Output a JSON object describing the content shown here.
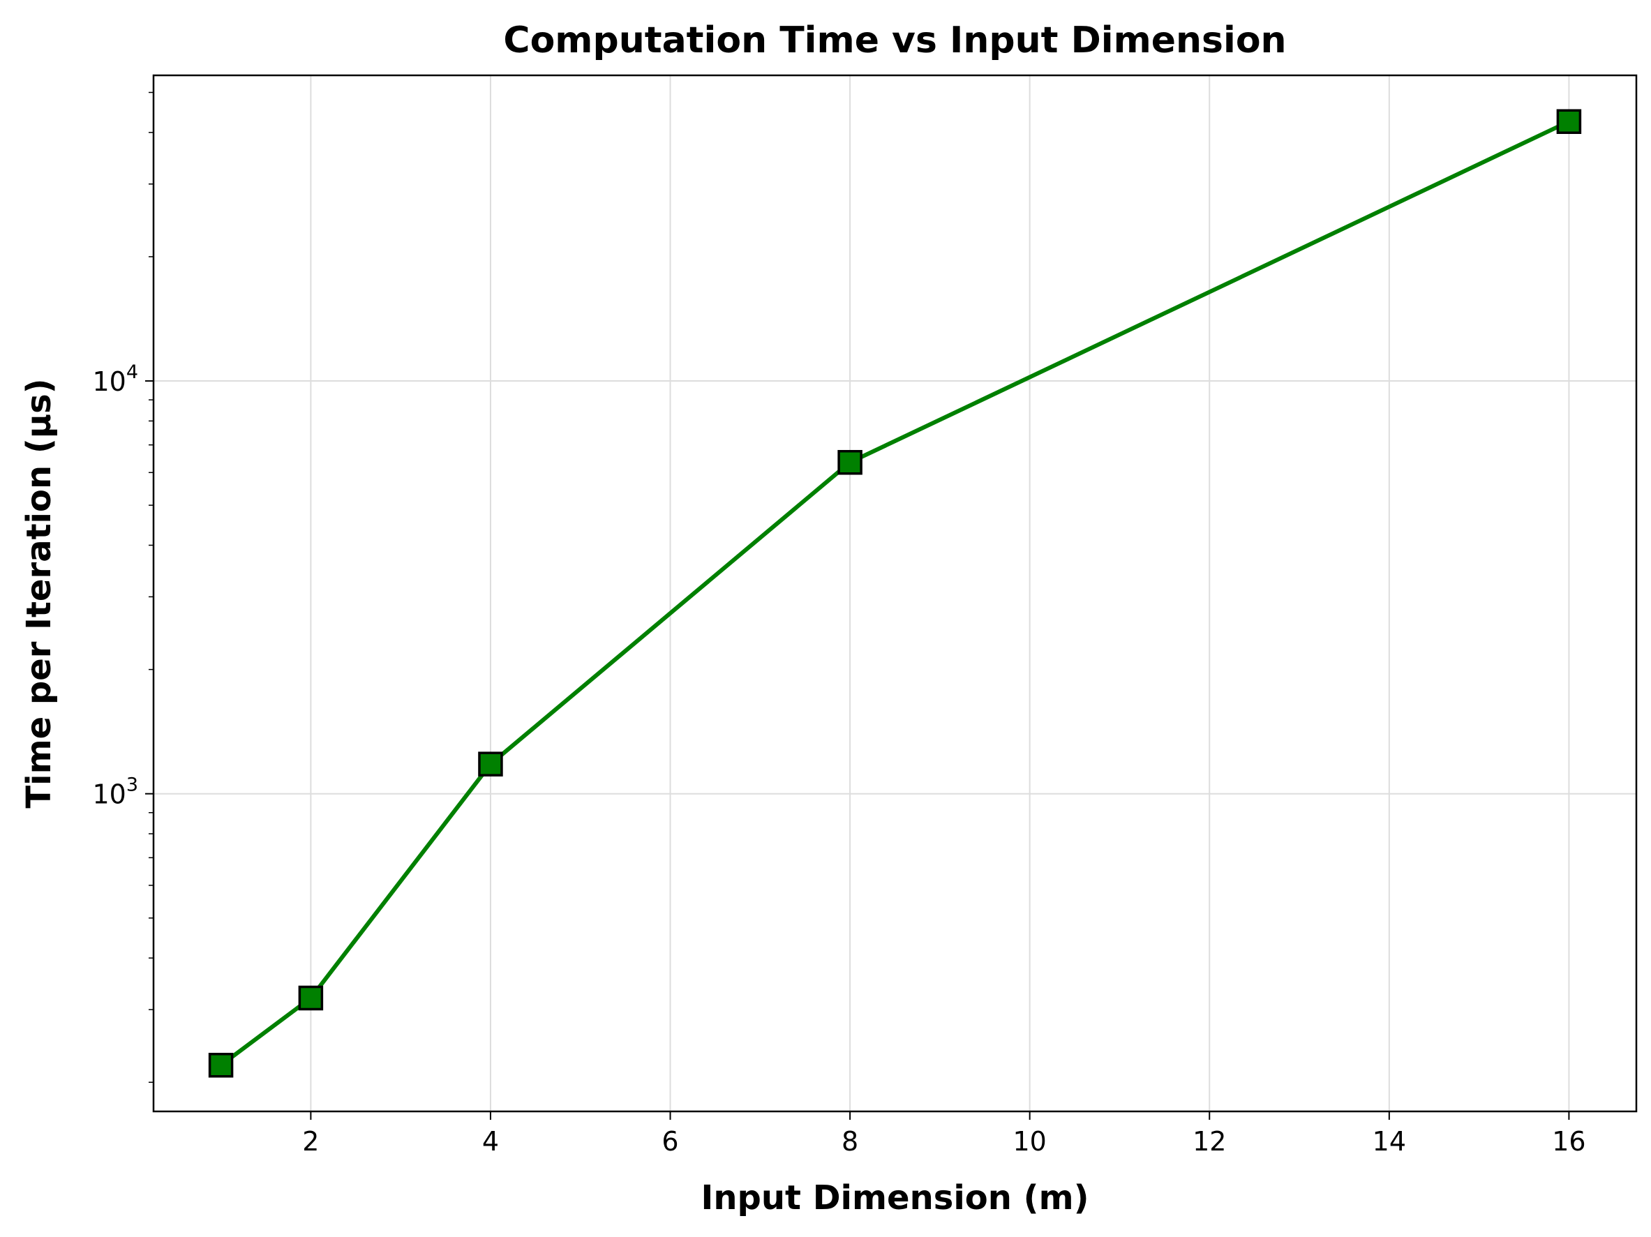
{
  "chart_data": {
    "type": "line",
    "title": "Computation Time vs Input Dimension",
    "xlabel": "Input Dimension (m)",
    "ylabel": "Time per Iteration (µs)",
    "x_scale": "linear",
    "y_scale": "log",
    "xlim": [
      0.25,
      16.75
    ],
    "ylim": [
      170,
      55000
    ],
    "x_ticks": [
      2,
      4,
      6,
      8,
      10,
      12,
      14,
      16
    ],
    "x_tick_labels": [
      "2",
      "4",
      "6",
      "8",
      "10",
      "12",
      "14",
      "16"
    ],
    "y_major_ticks": [
      {
        "value": 1000,
        "base": "10",
        "exp": "3"
      },
      {
        "value": 10000,
        "base": "10",
        "exp": "4"
      }
    ],
    "grid": true,
    "series": [
      {
        "x": [
          1,
          2,
          4,
          8,
          16
        ],
        "y": [
          220,
          320,
          1180,
          6350,
          42500
        ],
        "color": "#008000",
        "marker": "square",
        "marker_edge_color": "#000000"
      }
    ]
  }
}
